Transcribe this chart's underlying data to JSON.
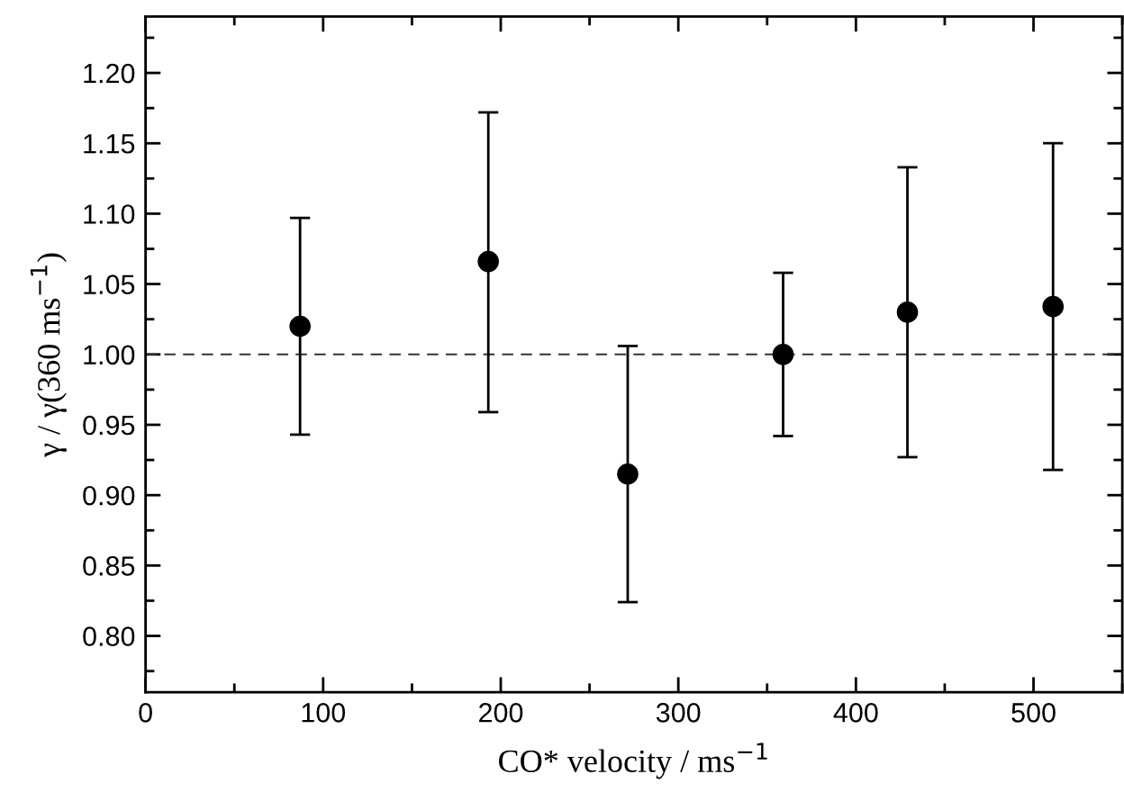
{
  "chart_data": {
    "type": "scatter",
    "xlabel": "CO* velocity / ms$^{−1}$",
    "ylabel": "γ / γ(360 ms$^{−1}$)",
    "x": [
      87,
      193,
      271.5,
      359,
      429,
      511
    ],
    "series": [
      {
        "color": "#000000",
        "values": [
          1.02,
          1.066,
          0.915,
          1.0,
          1.03,
          1.034
        ],
        "errors": [
          [
            0.943,
            1.097
          ],
          [
            0.959,
            1.172
          ],
          [
            0.824,
            1.006
          ],
          [
            0.942,
            1.058
          ],
          [
            0.927,
            1.133
          ],
          [
            0.918,
            1.15
          ]
        ]
      }
    ],
    "xlim": [
      0,
      550
    ],
    "ylim": [
      0.76,
      1.24
    ],
    "xticks": [
      0,
      {
        "value": 50,
        "label": null
      },
      100,
      {
        "value": 150,
        "label": null
      },
      200,
      {
        "value": 250,
        "label": null
      },
      300,
      {
        "value": 350,
        "label": null
      },
      400,
      {
        "value": 450,
        "label": null
      },
      500,
      {
        "value": 550,
        "label": null
      }
    ],
    "yticks": [
      {
        "value": 0.775,
        "label": null
      },
      {
        "value": 0.8,
        "label": "0.80"
      },
      {
        "value": 0.825,
        "label": null
      },
      {
        "value": 0.85,
        "label": "0.85"
      },
      {
        "value": 0.875,
        "label": null
      },
      {
        "value": 0.9,
        "label": "0.90"
      },
      {
        "value": 0.925,
        "label": null
      },
      {
        "value": 0.95,
        "label": "0.95"
      },
      {
        "value": 0.975,
        "label": null
      },
      {
        "value": 1.0,
        "label": "1.00"
      },
      {
        "value": 1.025,
        "label": null
      },
      {
        "value": 1.05,
        "label": "1.05"
      },
      {
        "value": 1.075,
        "label": null
      },
      {
        "value": 1.1,
        "label": "1.10"
      },
      {
        "value": 1.125,
        "label": null
      },
      {
        "value": 1.15,
        "label": "1.15"
      },
      {
        "value": 1.175,
        "label": null
      },
      {
        "value": 1.2,
        "label": "1.20"
      },
      {
        "value": 1.225,
        "label": null
      }
    ],
    "ref_lines": [
      {
        "axis": "y",
        "value": 1.0,
        "color": "#333333",
        "line_style": "dashed"
      }
    ],
    "marker": "circle",
    "grid": false,
    "legend": false
  }
}
